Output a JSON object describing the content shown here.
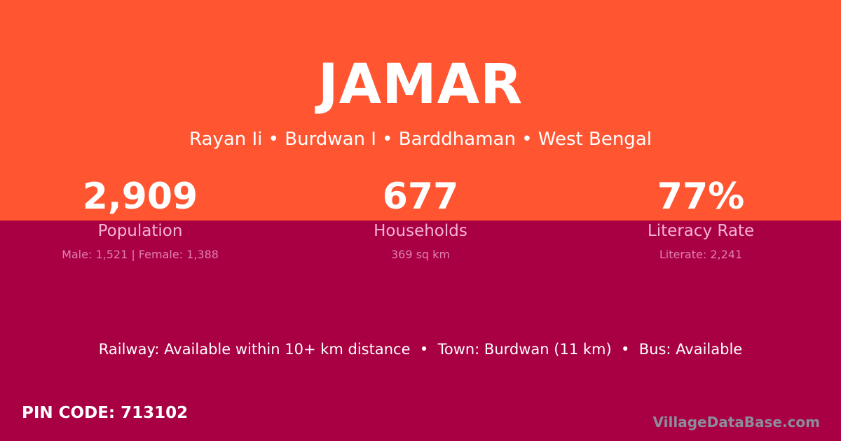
{
  "colors": {
    "top_background": "#FF5531",
    "bottom_background": "#A80042"
  },
  "title": "JAMAR",
  "subtitle": "Rayan Ii • Burdwan I • Barddhaman • West Bengal",
  "stats": [
    {
      "value": "2,909",
      "label": "Population",
      "detail": "Male: 1,521 | Female: 1,388"
    },
    {
      "value": "677",
      "label": "Households",
      "detail": "369 sq km"
    },
    {
      "value": "77%",
      "label": "Literacy Rate",
      "detail": "Literate: 2,241"
    }
  ],
  "facts": "Railway: Available within 10+ km distance  •  Town: Burdwan (11 km)  •  Bus: Available",
  "pin_code": "PIN CODE: 713102",
  "brand": "VillageDataBase.com"
}
